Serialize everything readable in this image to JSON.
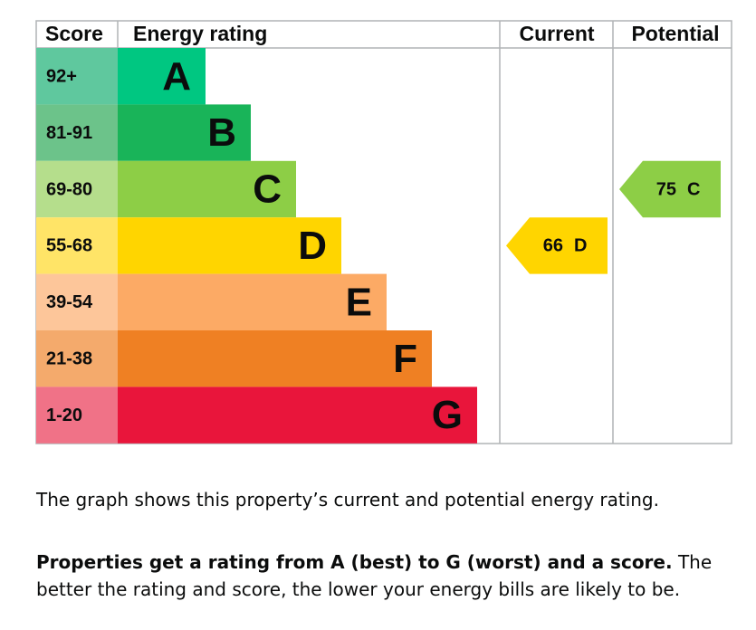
{
  "headers": [
    "Score",
    "Energy rating",
    "Current",
    "Potential"
  ],
  "bands": [
    {
      "score": "92+",
      "letter": "A",
      "color": "#00c781",
      "score_color": "#5fc89e"
    },
    {
      "score": "81-91",
      "letter": "B",
      "color": "#19b459",
      "score_color": "#6cc38a"
    },
    {
      "score": "69-80",
      "letter": "C",
      "color": "#8dce46",
      "score_color": "#b5de8c"
    },
    {
      "score": "55-68",
      "letter": "D",
      "color": "#ffd500",
      "score_color": "#ffe467"
    },
    {
      "score": "39-54",
      "letter": "E",
      "color": "#fcaa65",
      "score_color": "#fdc69a"
    },
    {
      "score": "21-38",
      "letter": "F",
      "color": "#ef8023",
      "score_color": "#f4aa6c"
    },
    {
      "score": "1-20",
      "letter": "G",
      "color": "#e9153b",
      "score_color": "#f07287"
    }
  ],
  "current": {
    "score": 66,
    "letter": "D"
  },
  "potential": {
    "score": 75,
    "letter": "C"
  },
  "text": {
    "intro": "The graph shows this property’s current and potential energy rating.",
    "bold": "Properties get a rating from A (best) to G (worst) and a score.",
    "rest": "The better the rating and score, the lower your energy bills are likely to be."
  }
}
